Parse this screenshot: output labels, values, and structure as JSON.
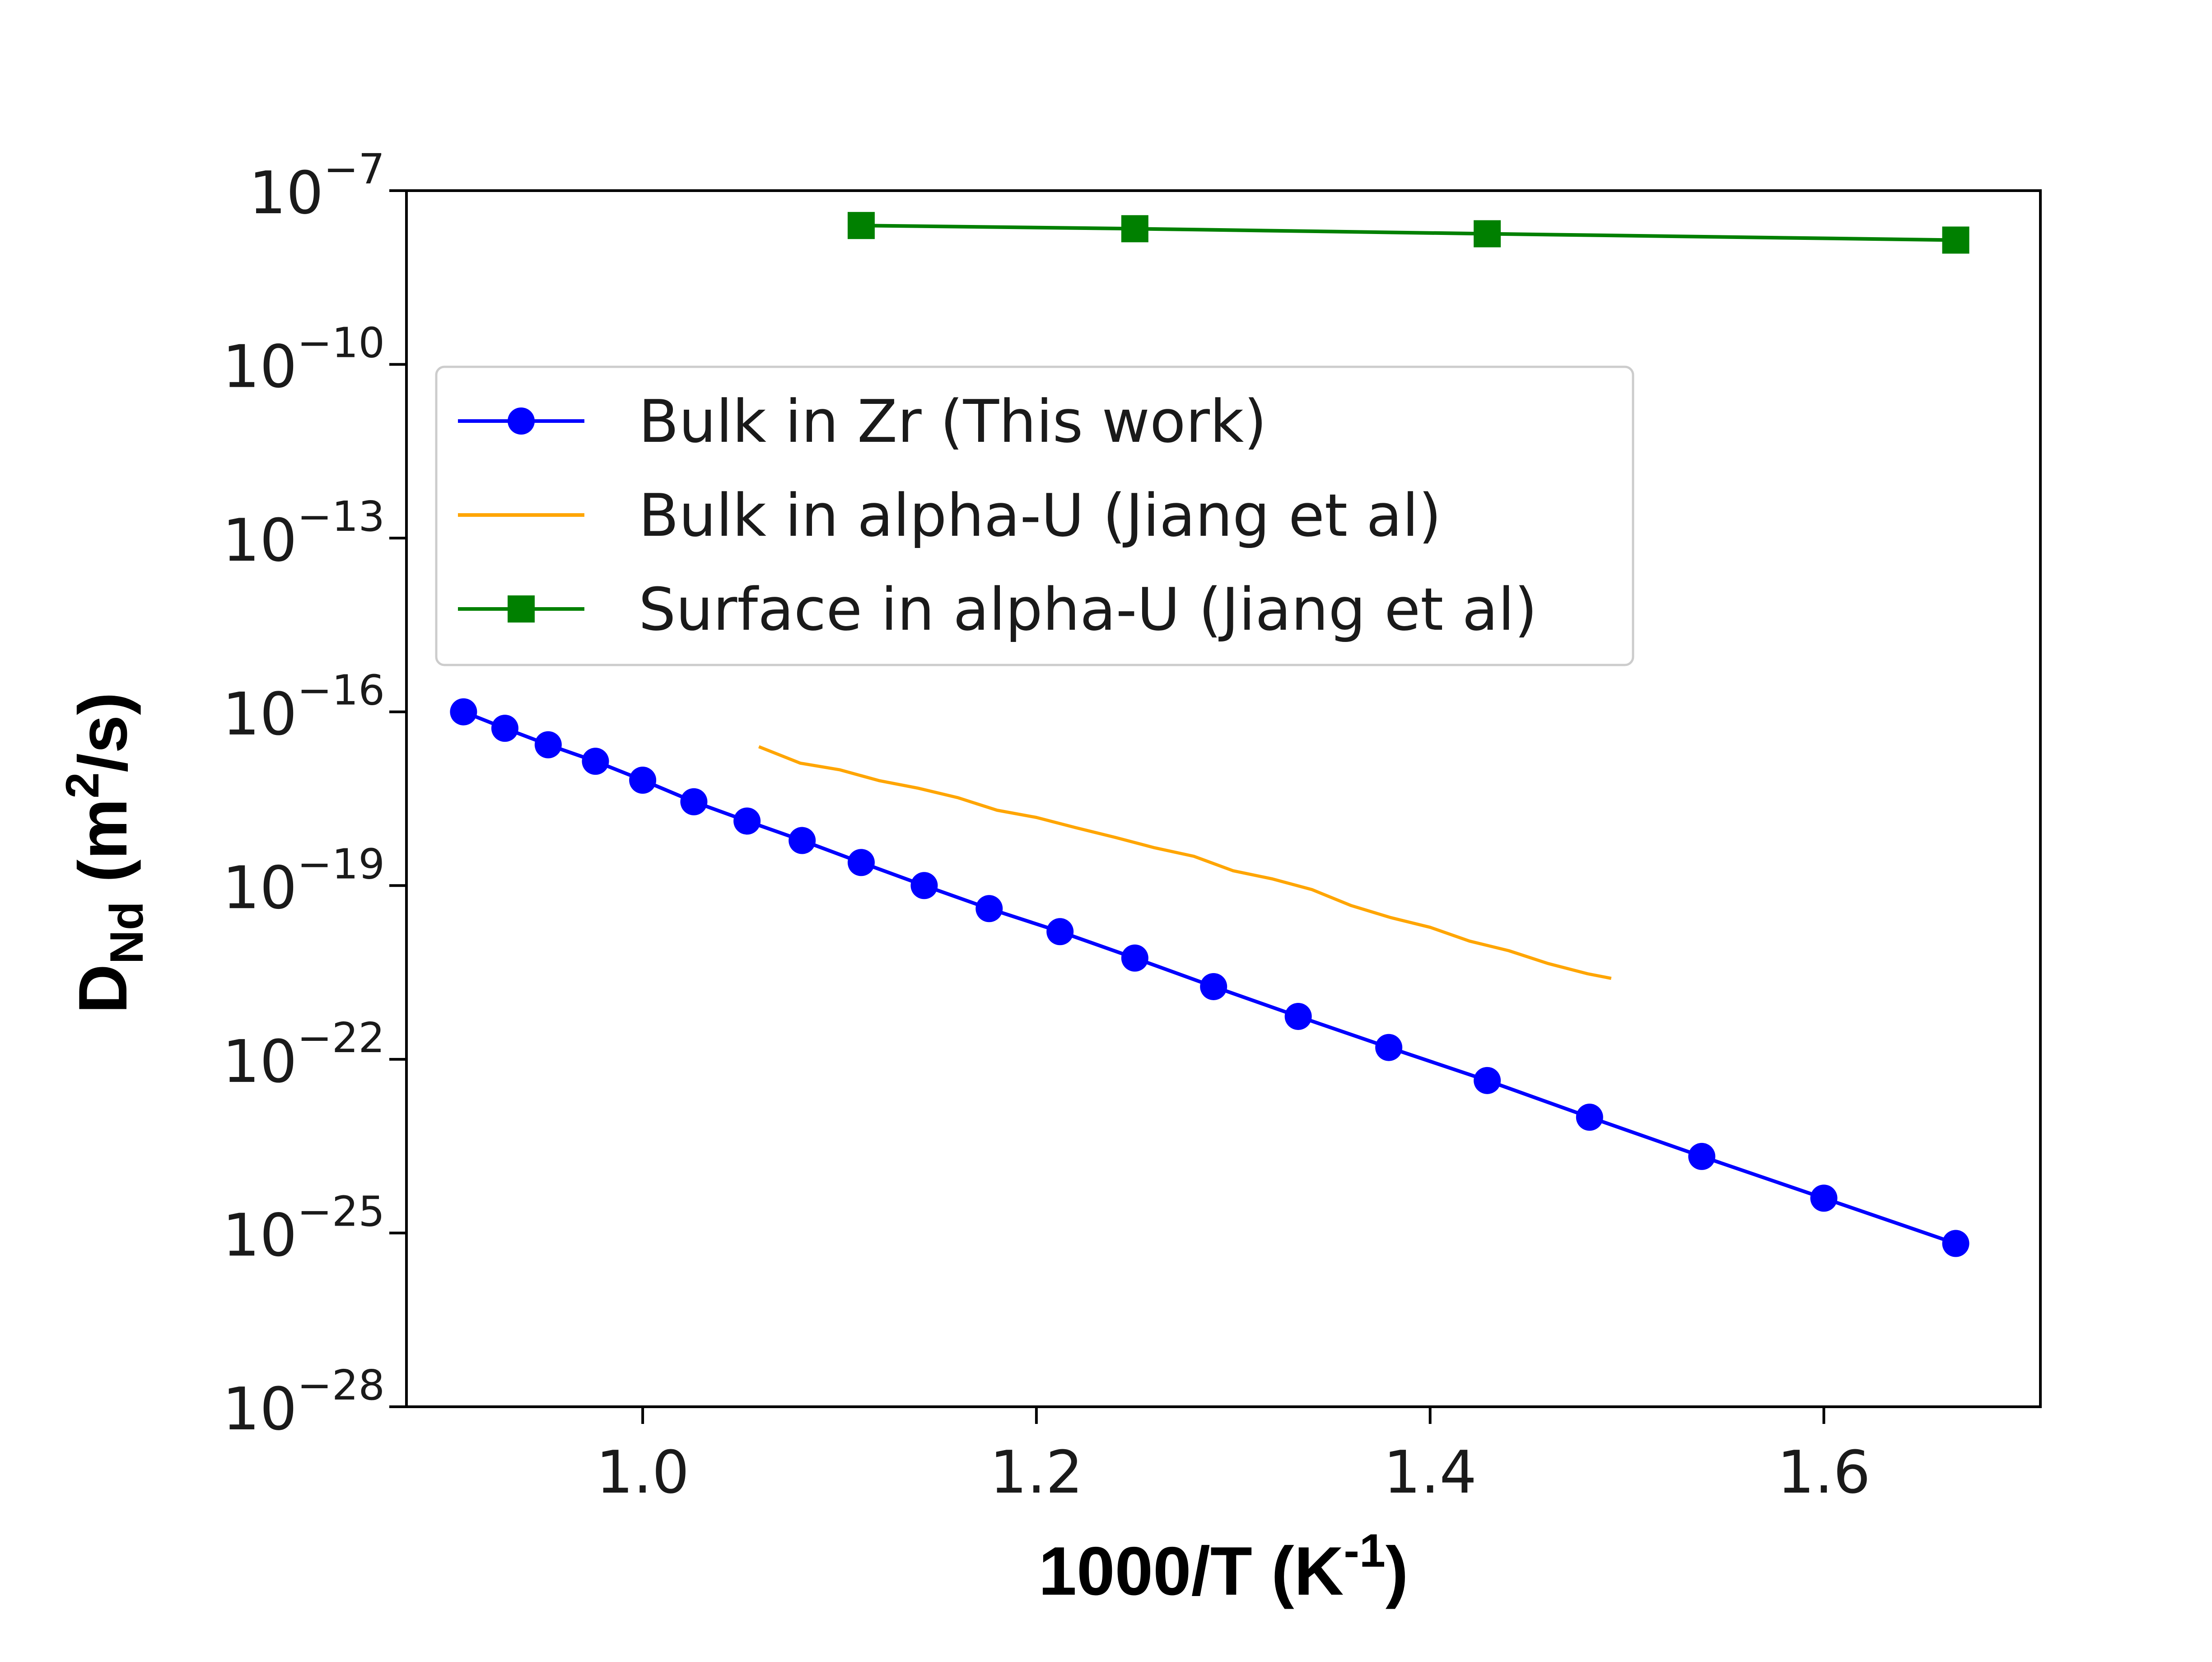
{
  "chart_data": {
    "type": "line",
    "title": "",
    "xlabel": {
      "main": "1000/T (K",
      "sup": "-1",
      "close": ")"
    },
    "ylabel": {
      "main": "D",
      "sub": "Nd",
      "rest": " (m",
      "sup": "2",
      "close": "/s)"
    },
    "xlim": [
      0.88,
      1.71
    ],
    "ylim": [
      1e-28,
      1e-07
    ],
    "yscale": "log",
    "grid": false,
    "legend_position": "upper-left",
    "x_ticks": [
      {
        "value": 1.0,
        "label": "1.0"
      },
      {
        "value": 1.2,
        "label": "1.2"
      },
      {
        "value": 1.4,
        "label": "1.4"
      },
      {
        "value": 1.6,
        "label": "1.6"
      }
    ],
    "y_ticks": [
      {
        "value": 1e-07,
        "base": "10",
        "exp": "−7"
      },
      {
        "value": 1e-10,
        "base": "10",
        "exp": "−10"
      },
      {
        "value": 1e-13,
        "base": "10",
        "exp": "−13"
      },
      {
        "value": 1e-16,
        "base": "10",
        "exp": "−16"
      },
      {
        "value": 1e-19,
        "base": "10",
        "exp": "−19"
      },
      {
        "value": 1e-22,
        "base": "10",
        "exp": "−22"
      },
      {
        "value": 1e-25,
        "base": "10",
        "exp": "−25"
      },
      {
        "value": 1e-28,
        "base": "10",
        "exp": "−28"
      }
    ],
    "series": [
      {
        "name": "Bulk in Zr (This work)",
        "color": "#0000ff",
        "marker": "circle",
        "x": [
          0.909,
          0.93,
          0.952,
          0.976,
          1.0,
          1.026,
          1.053,
          1.081,
          1.111,
          1.143,
          1.176,
          1.212,
          1.25,
          1.29,
          1.333,
          1.379,
          1.429,
          1.481,
          1.538,
          1.6,
          1.667
        ],
        "y": [
          1e-16,
          5.2e-17,
          2.7e-17,
          1.4e-17,
          6.6e-18,
          2.8e-18,
          1.3e-18,
          6e-19,
          2.5e-19,
          1e-19,
          4e-20,
          1.6e-20,
          5.6e-21,
          1.8e-21,
          5.5e-22,
          1.6e-22,
          4.3e-23,
          1e-23,
          2.1e-24,
          4e-25,
          6.6e-26
        ]
      },
      {
        "name": "Bulk in alpha-U (Jiang et al)",
        "color": "#ffa500",
        "marker": "none",
        "x": [
          1.059,
          1.08,
          1.1,
          1.12,
          1.14,
          1.16,
          1.18,
          1.2,
          1.22,
          1.24,
          1.26,
          1.28,
          1.3,
          1.32,
          1.34,
          1.36,
          1.38,
          1.4,
          1.42,
          1.44,
          1.46,
          1.48,
          1.492
        ],
        "y": [
          2.5e-17,
          1.3e-17,
          1e-17,
          6.5e-18,
          4.8e-18,
          3.3e-18,
          2e-18,
          1.5e-18,
          1e-18,
          6.8e-19,
          4.5e-19,
          3.2e-19,
          1.8e-19,
          1.3e-19,
          8.5e-20,
          4.5e-20,
          2.8e-20,
          1.9e-20,
          1.1e-20,
          7.5e-21,
          4.5e-21,
          3e-21,
          2.5e-21
        ]
      },
      {
        "name": "Surface in alpha-U (Jiang et al)",
        "color": "#008000",
        "marker": "square",
        "x": [
          1.111,
          1.25,
          1.429,
          1.667
        ],
        "y": [
          2.5e-08,
          2.2e-08,
          1.8e-08,
          1.4e-08
        ]
      }
    ]
  }
}
